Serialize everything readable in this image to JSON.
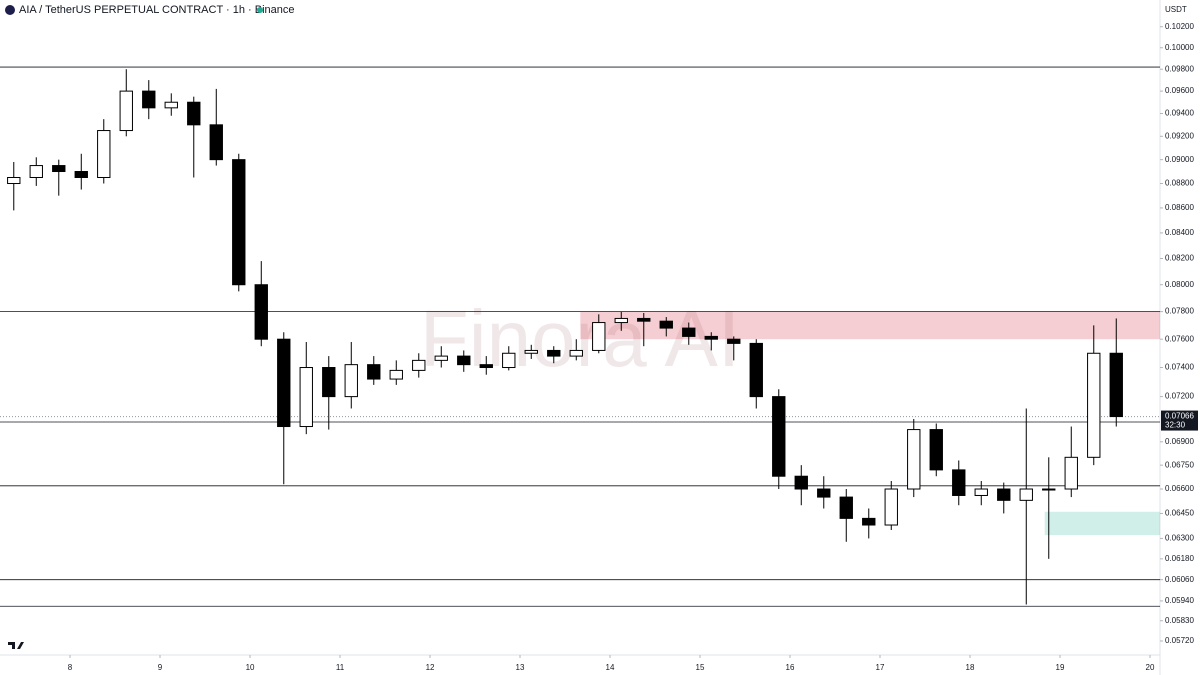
{
  "chart_data": {
    "type": "candlestick",
    "title": "AIA / TetherUS PERPETUAL CONTRACT · 1h · Binance",
    "unit_label": "USDT",
    "watermark": "Finora AI",
    "log_scale": true,
    "up_color": "#ffffff",
    "down_color": "#000000",
    "xlim": [
      7.222,
      20.111
    ],
    "xticks": [
      8,
      9,
      10,
      11,
      12,
      13,
      14,
      15,
      16,
      17,
      18,
      19,
      20
    ],
    "ylim": [
      0.05645,
      0.1046
    ],
    "yticks": [
      {
        "value": 0.102,
        "label": "0.10200"
      },
      {
        "value": 0.1,
        "label": "0.10000"
      },
      {
        "value": 0.098,
        "label": "0.09800"
      },
      {
        "value": 0.096,
        "label": "0.09600"
      },
      {
        "value": 0.094,
        "label": "0.09400"
      },
      {
        "value": 0.092,
        "label": "0.09200"
      },
      {
        "value": 0.09,
        "label": "0.09000"
      },
      {
        "value": 0.088,
        "label": "0.08800"
      },
      {
        "value": 0.086,
        "label": "0.08600"
      },
      {
        "value": 0.084,
        "label": "0.08400"
      },
      {
        "value": 0.082,
        "label": "0.08200"
      },
      {
        "value": 0.08,
        "label": "0.08000"
      },
      {
        "value": 0.078,
        "label": "0.07800"
      },
      {
        "value": 0.076,
        "label": "0.07600"
      },
      {
        "value": 0.074,
        "label": "0.07400"
      },
      {
        "value": 0.072,
        "label": "0.07200"
      },
      {
        "value": 0.069,
        "label": "0.06900"
      },
      {
        "value": 0.0675,
        "label": "0.06750"
      },
      {
        "value": 0.066,
        "label": "0.06600"
      },
      {
        "value": 0.0645,
        "label": "0.06450"
      },
      {
        "value": 0.063,
        "label": "0.06300"
      },
      {
        "value": 0.0618,
        "label": "0.06180"
      },
      {
        "value": 0.0606,
        "label": "0.06060"
      },
      {
        "value": 0.0594,
        "label": "0.05940"
      },
      {
        "value": 0.0583,
        "label": "0.05830"
      },
      {
        "value": 0.0572,
        "label": "0.05720"
      }
    ],
    "levels": [
      0.0982,
      0.078,
      0.0703,
      0.0662,
      0.0606,
      0.0591
    ],
    "zones": [
      {
        "x0": 13.67,
        "bottom": 0.076,
        "top": 0.078,
        "color": "rgba(214,80,95,0.28)"
      },
      {
        "x0": 18.83,
        "bottom": 0.0632,
        "top": 0.0646,
        "color": "rgba(40,180,150,0.22)"
      }
    ],
    "last_price": {
      "value": 0.07066,
      "label": "0.07066"
    },
    "countdown": "32:30",
    "x": [
      7.375,
      7.625,
      7.875,
      8.125,
      8.375,
      8.625,
      8.875,
      9.125,
      9.375,
      9.625,
      9.875,
      10.125,
      10.375,
      10.625,
      10.875,
      11.125,
      11.375,
      11.625,
      11.875,
      12.125,
      12.375,
      12.625,
      12.875,
      13.125,
      13.375,
      13.625,
      13.875,
      14.125,
      14.375,
      14.625,
      14.875,
      15.125,
      15.375,
      15.625,
      15.875,
      16.125,
      16.375,
      16.625,
      16.875,
      17.125,
      17.375,
      17.625,
      17.875,
      18.125,
      18.375,
      18.625,
      18.875,
      19.125,
      19.375,
      19.625
    ],
    "candles": [
      [
        0.088,
        0.0898,
        0.0858,
        0.0885
      ],
      [
        0.0885,
        0.0902,
        0.0878,
        0.0895
      ],
      [
        0.0895,
        0.09,
        0.087,
        0.089
      ],
      [
        0.089,
        0.0905,
        0.0875,
        0.0885
      ],
      [
        0.0885,
        0.0935,
        0.088,
        0.0925
      ],
      [
        0.0925,
        0.098,
        0.092,
        0.096
      ],
      [
        0.096,
        0.097,
        0.0935,
        0.0945
      ],
      [
        0.0945,
        0.0958,
        0.0938,
        0.095
      ],
      [
        0.095,
        0.0955,
        0.0885,
        0.093
      ],
      [
        0.093,
        0.0962,
        0.0895,
        0.09
      ],
      [
        0.09,
        0.0905,
        0.0795,
        0.08
      ],
      [
        0.08,
        0.0818,
        0.0755,
        0.076
      ],
      [
        0.076,
        0.0765,
        0.0663,
        0.07
      ],
      [
        0.07,
        0.0758,
        0.0695,
        0.074
      ],
      [
        0.074,
        0.0748,
        0.0698,
        0.072
      ],
      [
        0.072,
        0.0758,
        0.0712,
        0.0742
      ],
      [
        0.0742,
        0.0748,
        0.0728,
        0.0732
      ],
      [
        0.0732,
        0.0745,
        0.0728,
        0.0738
      ],
      [
        0.0738,
        0.075,
        0.0733,
        0.0745
      ],
      [
        0.0745,
        0.0755,
        0.074,
        0.0748
      ],
      [
        0.0748,
        0.0752,
        0.0737,
        0.0742
      ],
      [
        0.0742,
        0.0748,
        0.0735,
        0.074
      ],
      [
        0.074,
        0.0755,
        0.0738,
        0.075
      ],
      [
        0.075,
        0.0756,
        0.0746,
        0.0752
      ],
      [
        0.0752,
        0.0755,
        0.0743,
        0.0748
      ],
      [
        0.0748,
        0.076,
        0.0745,
        0.0752
      ],
      [
        0.0752,
        0.0778,
        0.075,
        0.0772
      ],
      [
        0.0772,
        0.078,
        0.0766,
        0.0775
      ],
      [
        0.0775,
        0.0779,
        0.0755,
        0.0773
      ],
      [
        0.0773,
        0.0776,
        0.0762,
        0.0768
      ],
      [
        0.0768,
        0.0772,
        0.0756,
        0.0762
      ],
      [
        0.0762,
        0.0765,
        0.0752,
        0.076
      ],
      [
        0.076,
        0.0762,
        0.0745,
        0.0757
      ],
      [
        0.0757,
        0.076,
        0.0712,
        0.072
      ],
      [
        0.072,
        0.0725,
        0.066,
        0.0668
      ],
      [
        0.0668,
        0.0675,
        0.065,
        0.066
      ],
      [
        0.066,
        0.0668,
        0.0648,
        0.0655
      ],
      [
        0.0655,
        0.066,
        0.0628,
        0.0642
      ],
      [
        0.0642,
        0.0648,
        0.063,
        0.0638
      ],
      [
        0.0638,
        0.0665,
        0.0635,
        0.066
      ],
      [
        0.066,
        0.0705,
        0.0655,
        0.0698
      ],
      [
        0.0698,
        0.0702,
        0.0668,
        0.0672
      ],
      [
        0.0672,
        0.0678,
        0.065,
        0.0656
      ],
      [
        0.0656,
        0.0665,
        0.065,
        0.066
      ],
      [
        0.066,
        0.0664,
        0.0645,
        0.0653
      ],
      [
        0.0653,
        0.0712,
        0.0592,
        0.066
      ],
      [
        0.066,
        0.068,
        0.0618,
        0.066
      ],
      [
        0.066,
        0.07,
        0.0655,
        0.068
      ],
      [
        0.068,
        0.077,
        0.0675,
        0.075
      ],
      [
        0.075,
        0.0775,
        0.07,
        0.07066
      ]
    ]
  }
}
